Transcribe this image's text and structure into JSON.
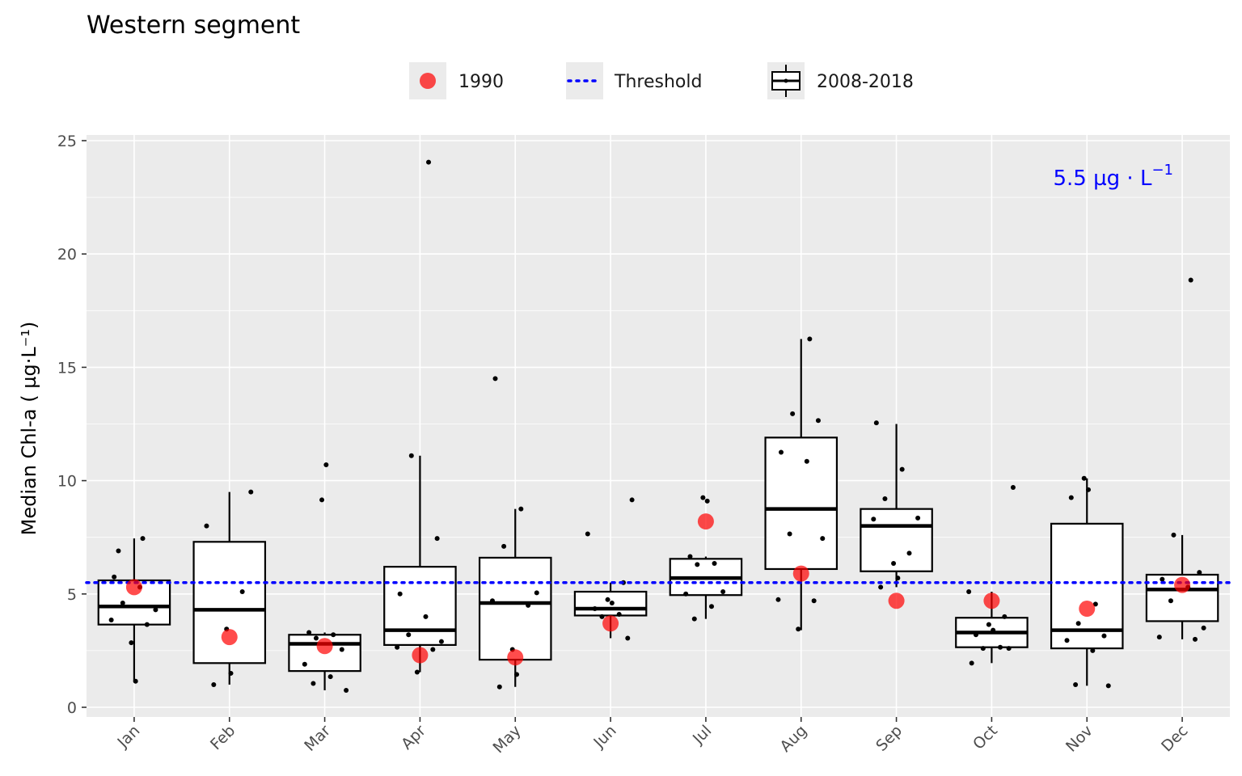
{
  "chart_data": {
    "type": "boxplot",
    "title": "Western segment",
    "ylabel": "Median Chl-a ( µg·L⁻¹)",
    "xlabel": "",
    "ylim": [
      0,
      25
    ],
    "yticks": [
      0,
      5,
      10,
      15,
      20,
      25
    ],
    "categories": [
      "Jan",
      "Feb",
      "Mar",
      "Apr",
      "May",
      "Jun",
      "Jul",
      "Aug",
      "Sep",
      "Oct",
      "Nov",
      "Dec"
    ],
    "legend": {
      "position": "top",
      "entries": [
        {
          "key": "point",
          "label": "1990"
        },
        {
          "key": "dotted-line",
          "label": "Threshold"
        },
        {
          "key": "box",
          "label": "2008-2018"
        }
      ]
    },
    "threshold": {
      "value": 5.5,
      "label_main": "5.5 µg · L",
      "label_sup": "−1",
      "color": "#0000ff"
    },
    "series_1990": {
      "name": "1990",
      "color": "#ff0000",
      "values": [
        5.3,
        3.1,
        2.7,
        2.3,
        2.2,
        3.7,
        8.2,
        5.9,
        4.7,
        4.7,
        4.35,
        5.4
      ]
    },
    "series_2008_2018": {
      "name": "2008-2018",
      "boxes": [
        {
          "low": 1.15,
          "q1": 3.65,
          "median": 4.45,
          "q3": 5.6,
          "high": 7.45
        },
        {
          "low": 1.0,
          "q1": 1.95,
          "median": 4.3,
          "q3": 7.3,
          "high": 9.5
        },
        {
          "low": 0.75,
          "q1": 1.6,
          "median": 2.8,
          "q3": 3.2,
          "high": 3.3
        },
        {
          "low": 1.55,
          "q1": 2.75,
          "median": 3.4,
          "q3": 6.2,
          "high": 11.1
        },
        {
          "low": 0.9,
          "q1": 2.1,
          "median": 4.6,
          "q3": 6.6,
          "high": 8.75
        },
        {
          "low": 3.05,
          "q1": 4.05,
          "median": 4.35,
          "q3": 5.1,
          "high": 5.5
        },
        {
          "low": 3.9,
          "q1": 4.95,
          "median": 5.7,
          "q3": 6.55,
          "high": 6.65
        },
        {
          "low": 3.4,
          "q1": 6.1,
          "median": 8.75,
          "q3": 11.9,
          "high": 16.25
        },
        {
          "low": 5.3,
          "q1": 6.0,
          "median": 8.0,
          "q3": 8.75,
          "high": 12.5
        },
        {
          "low": 1.95,
          "q1": 2.65,
          "median": 3.3,
          "q3": 3.95,
          "high": 5.1
        },
        {
          "low": 0.95,
          "q1": 2.6,
          "median": 3.4,
          "q3": 8.1,
          "high": 10.1
        },
        {
          "low": 3.0,
          "q1": 3.8,
          "median": 5.2,
          "q3": 5.85,
          "high": 7.6
        }
      ],
      "points": [
        [
          5.75,
          5.3,
          4.6,
          4.3,
          3.85,
          3.65,
          2.85,
          1.15,
          6.9,
          7.45
        ],
        [
          9.5,
          8.0,
          5.1,
          3.45,
          1.5,
          1.0
        ],
        [
          9.15,
          10.7,
          3.3,
          3.2,
          3.05,
          2.55,
          1.9,
          1.35,
          1.05,
          0.75
        ],
        [
          24.05,
          11.1,
          7.45,
          5.0,
          4.0,
          3.2,
          2.9,
          2.65,
          2.55,
          1.55
        ],
        [
          14.5,
          8.75,
          7.1,
          5.05,
          4.7,
          4.5,
          2.55,
          1.45,
          0.9
        ],
        [
          9.15,
          7.65,
          5.5,
          4.75,
          4.6,
          4.35,
          4.1,
          4.0,
          3.05
        ],
        [
          9.25,
          9.1,
          6.65,
          6.35,
          6.3,
          5.1,
          5.0,
          4.45,
          3.9
        ],
        [
          16.25,
          12.95,
          12.65,
          11.25,
          10.85,
          7.65,
          7.45,
          4.75,
          4.7,
          3.45
        ],
        [
          12.55,
          10.5,
          9.2,
          8.35,
          8.3,
          6.8,
          6.35,
          5.7,
          5.3
        ],
        [
          9.7,
          5.1,
          4.0,
          3.65,
          3.4,
          3.2,
          2.65,
          2.6,
          2.6,
          1.95
        ],
        [
          10.1,
          9.6,
          9.25,
          4.55,
          3.7,
          3.15,
          2.95,
          2.5,
          1.0,
          0.95
        ],
        [
          18.85,
          7.6,
          5.95,
          5.65,
          5.3,
          4.7,
          3.5,
          3.1,
          3.0
        ]
      ]
    }
  }
}
